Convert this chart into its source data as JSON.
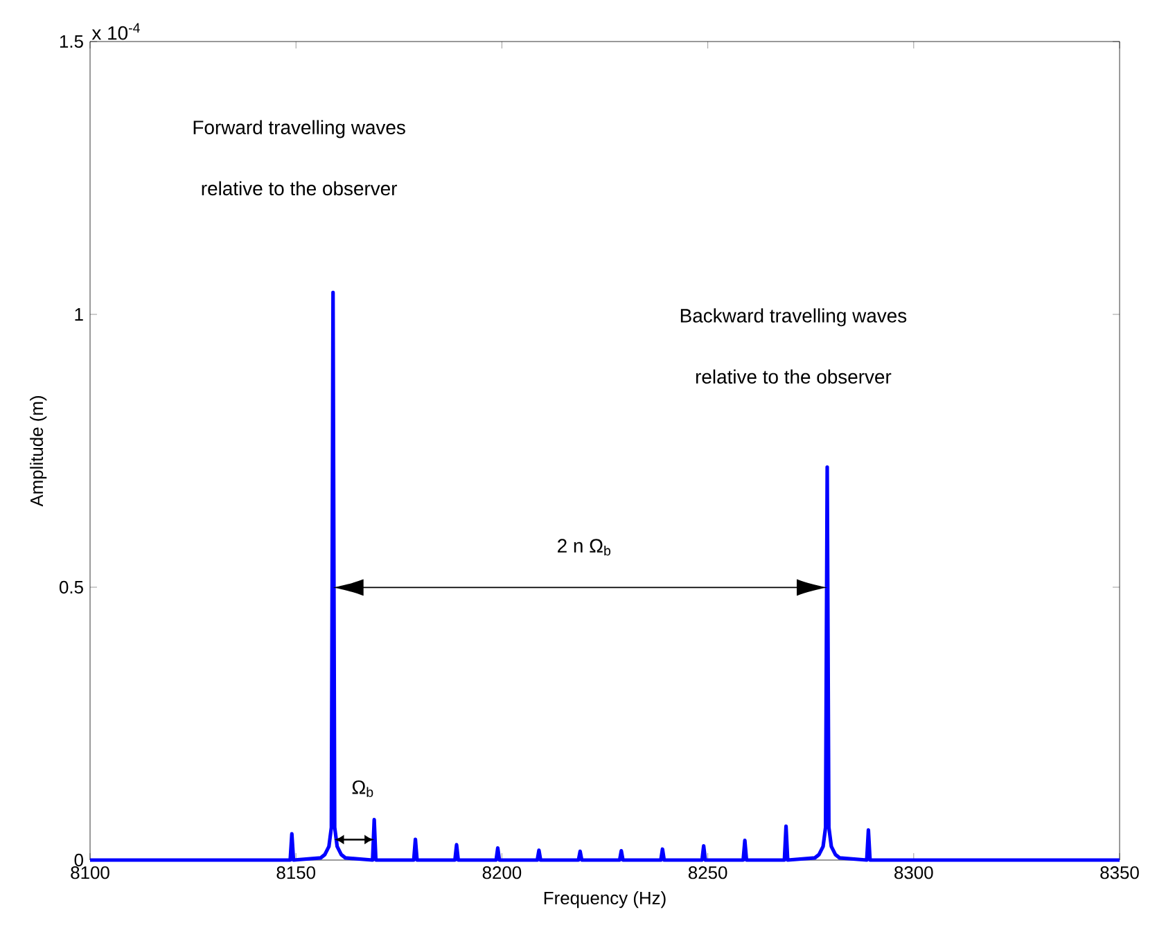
{
  "chart_data": {
    "type": "line",
    "xlabel": "Frequency (Hz)",
    "ylabel": "Amplitude (m)",
    "xlim": [
      8100,
      8350
    ],
    "ylim": [
      0,
      1.5
    ],
    "xticks": [
      8100,
      8150,
      8200,
      8250,
      8300,
      8350
    ],
    "yticks": [
      0,
      0.5,
      1,
      1.5
    ],
    "grid": false,
    "marker": "none",
    "line_style": "solid",
    "series": [
      {
        "color": "#0000ff",
        "x": [
          8100,
          8140,
          8148.6,
          8149,
          8149.4,
          8156,
          8157,
          8158,
          8158.6,
          8159,
          8159.4,
          8160,
          8161,
          8162,
          8168.6,
          8169,
          8169.4,
          8178.6,
          8179,
          8179.4,
          8188.6,
          8189,
          8189.4,
          8198.6,
          8199,
          8199.4,
          8208.6,
          8209,
          8209.4,
          8218.6,
          8219,
          8219.4,
          8228.6,
          8229,
          8229.4,
          8238.6,
          8239,
          8239.4,
          8248.6,
          8249,
          8249.4,
          8258.6,
          8259,
          8259.4,
          8268.6,
          8269,
          8269.4,
          8276,
          8277,
          8278,
          8278.6,
          8279,
          8279.4,
          8280,
          8281,
          8282,
          8288.6,
          8289,
          8289.4,
          8300,
          8350
        ],
        "values": [
          0,
          0,
          0,
          0.048,
          0,
          0.004,
          0.01,
          0.025,
          0.06,
          1.04,
          0.06,
          0.025,
          0.01,
          0.004,
          0,
          0.074,
          0,
          0,
          0.038,
          0,
          0,
          0.028,
          0,
          0,
          0.022,
          0,
          0,
          0.018,
          0,
          0,
          0.016,
          0,
          0,
          0.017,
          0,
          0,
          0.02,
          0,
          0,
          0.026,
          0,
          0,
          0.036,
          0,
          0,
          0.062,
          0,
          0.004,
          0.01,
          0.025,
          0.06,
          0.72,
          0.06,
          0.025,
          0.01,
          0.004,
          0,
          0.055,
          0,
          0,
          0
        ]
      }
    ],
    "annotations": [
      "x 10$^{-4}$",
      "Forward travelling waves",
      "relative to the observer",
      "Backward travelling waves",
      "relative to the observer",
      "2 n Ω$_{b}$",
      "Ω$_{b}$"
    ]
  }
}
